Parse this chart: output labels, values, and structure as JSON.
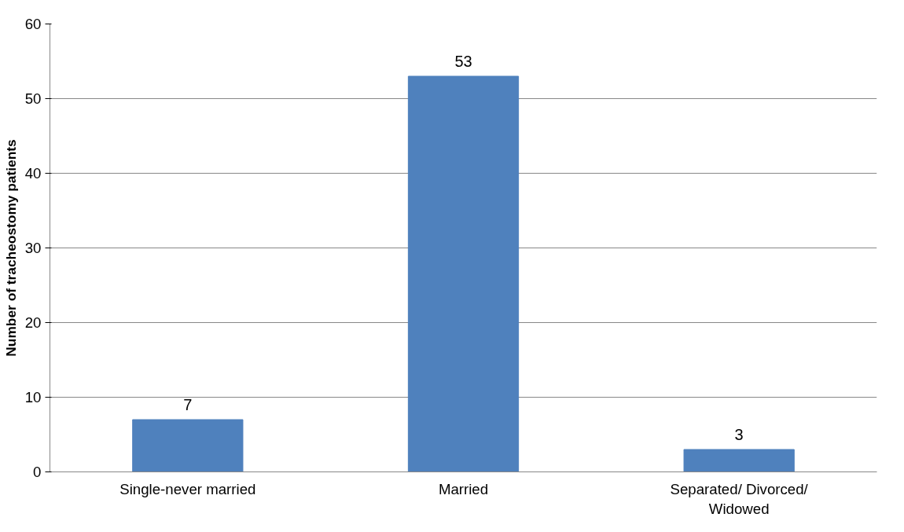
{
  "chart_data": {
    "type": "bar",
    "ylabel": "Number of tracheostomy patients",
    "categories": [
      "Single-never married",
      "Married",
      "Separated/ Divorced/ Widowed"
    ],
    "values": [
      7,
      53,
      3
    ],
    "color": "#4f81bd",
    "data_labels": true,
    "ylim": [
      0,
      60
    ],
    "yticks": [
      0,
      10,
      20,
      30,
      40,
      50,
      60
    ],
    "grid": "y"
  }
}
